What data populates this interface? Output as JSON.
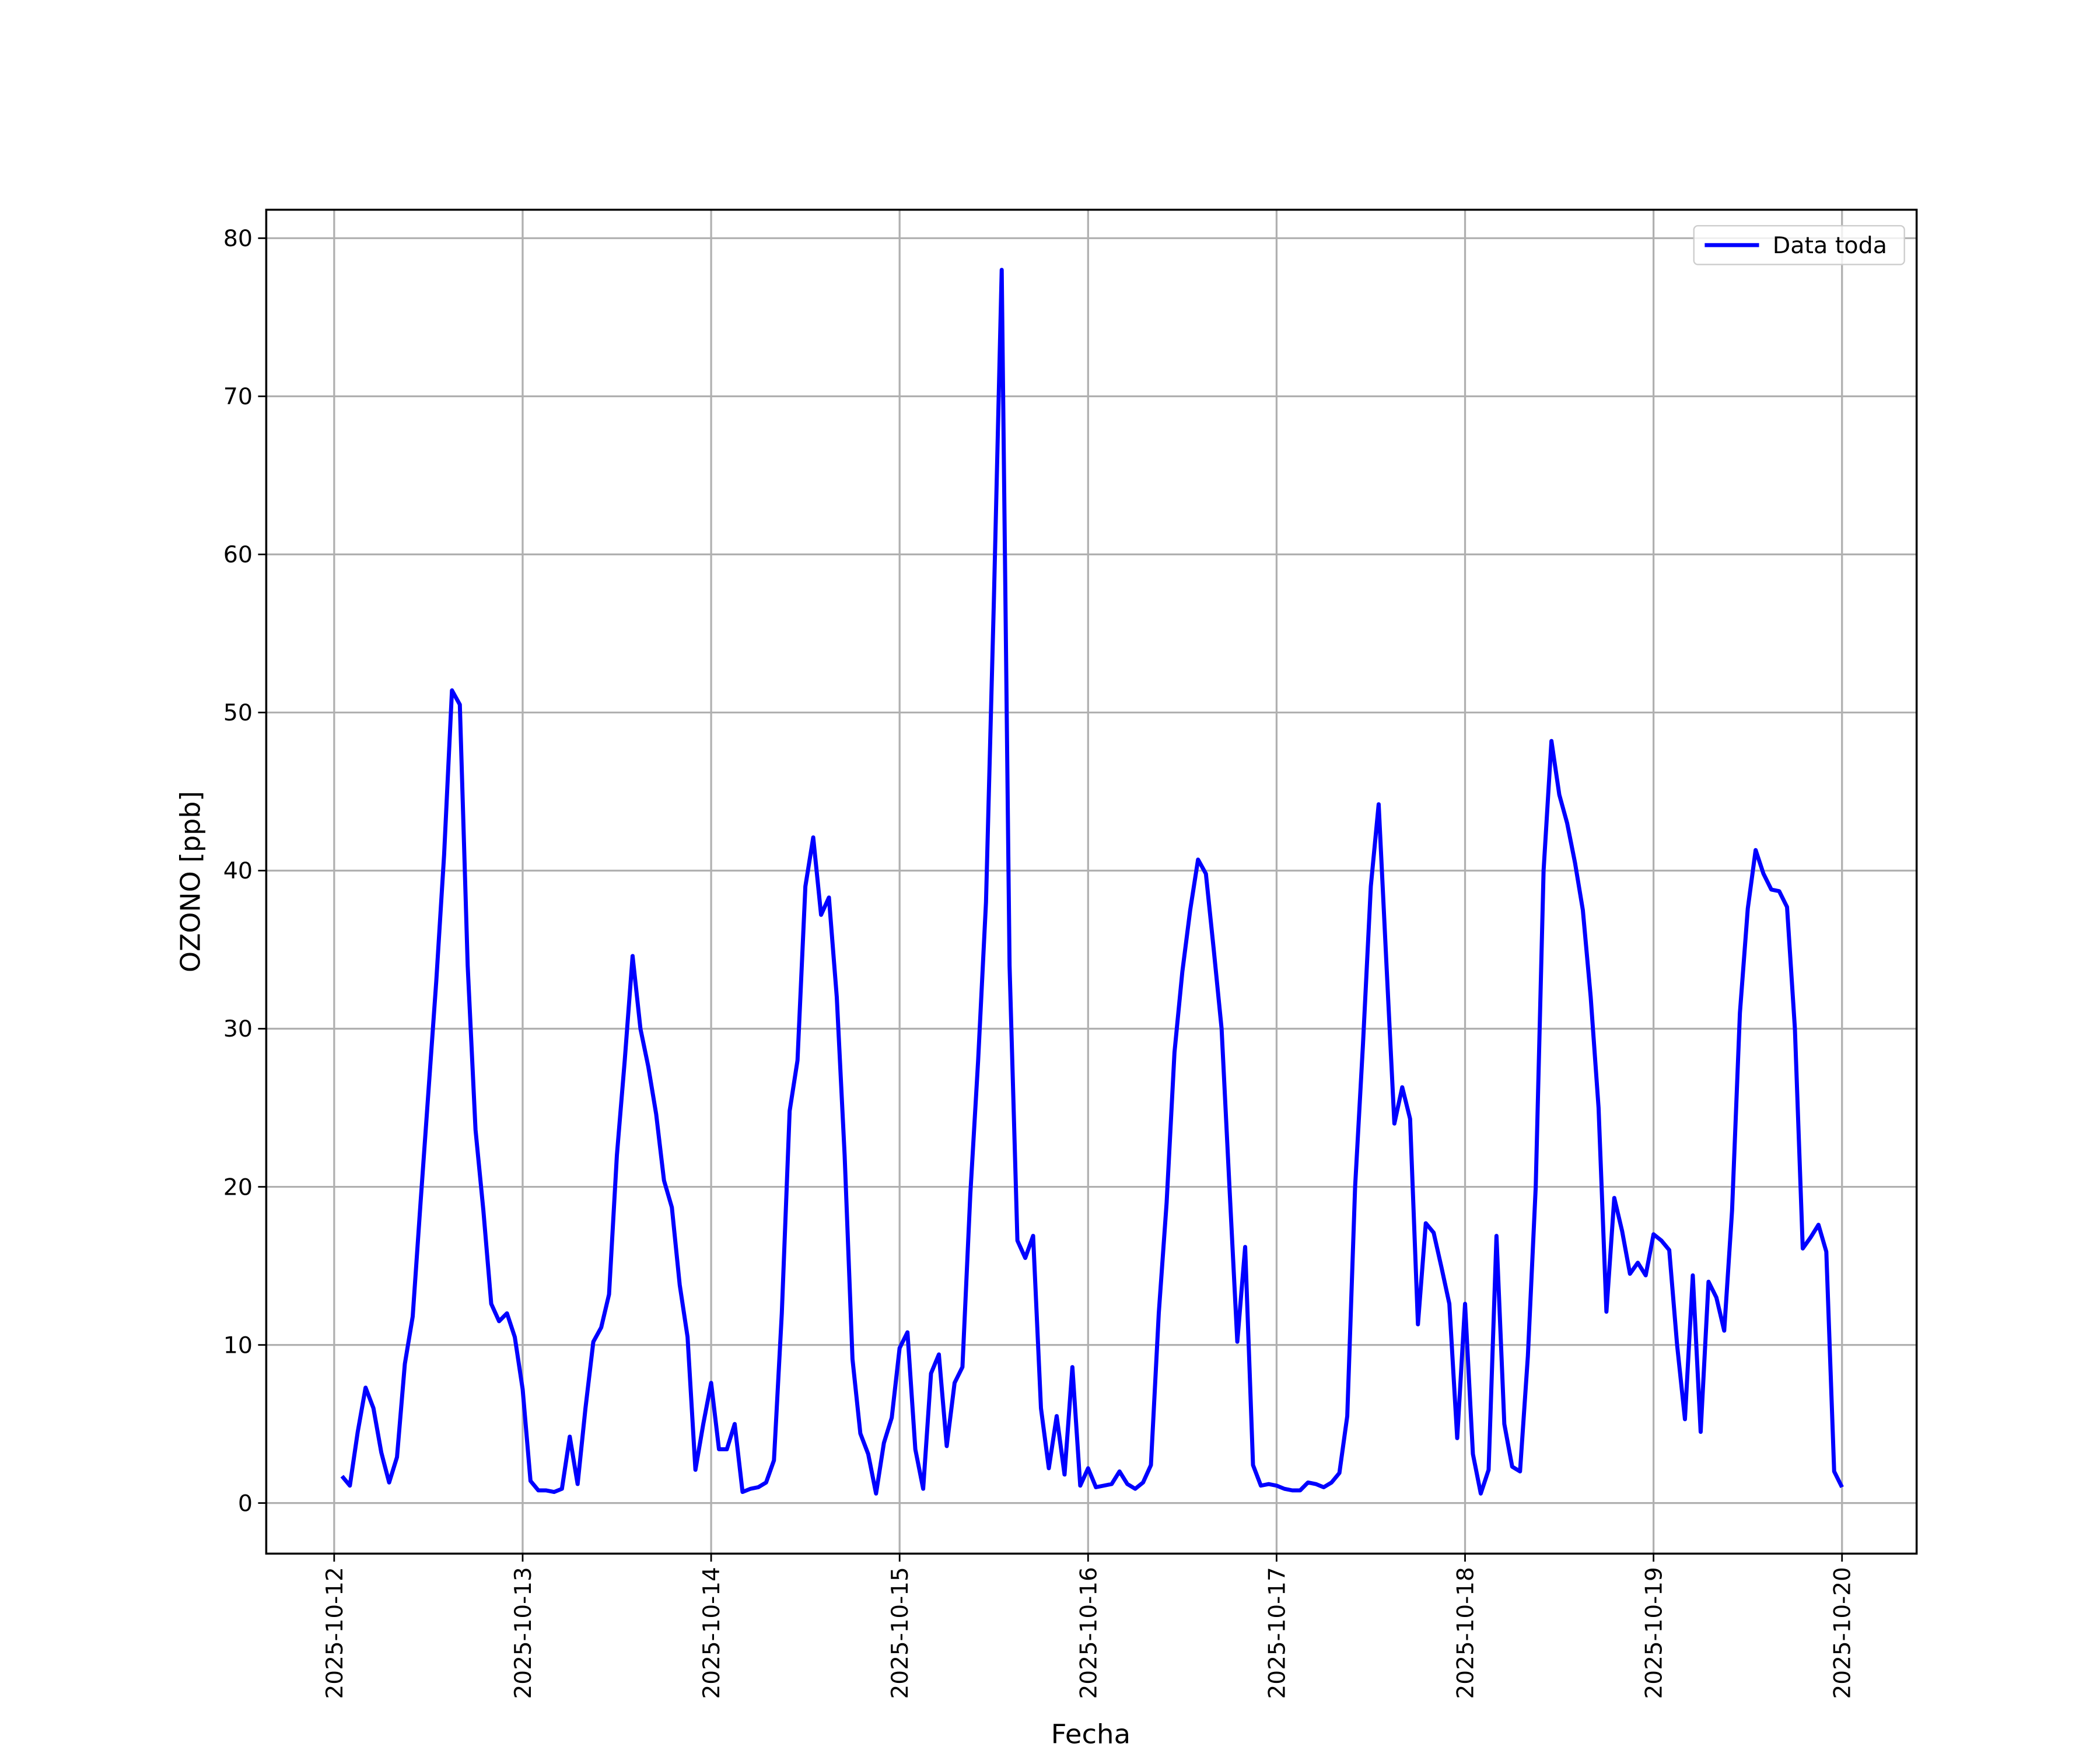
{
  "chart_data": {
    "type": "line",
    "xlabel": "Fecha",
    "ylabel": "OZONO [ppb]",
    "legend": "upper right",
    "grid": true,
    "xlim": [
      "2025-10-11T15:21",
      "2025-10-20T09:30"
    ],
    "xticks": [
      "2025-10-12",
      "2025-10-13",
      "2025-10-14",
      "2025-10-15",
      "2025-10-16",
      "2025-10-17",
      "2025-10-18",
      "2025-10-19",
      "2025-10-20"
    ],
    "ylim": [
      -3.2,
      81.8
    ],
    "yticks": [
      0,
      10,
      20,
      30,
      40,
      50,
      60,
      70,
      80
    ],
    "x": [
      "2025-10-12T01:00",
      "2025-10-12T02:00",
      "2025-10-12T03:00",
      "2025-10-12T04:00",
      "2025-10-12T05:00",
      "2025-10-12T06:00",
      "2025-10-12T07:00",
      "2025-10-12T08:00",
      "2025-10-12T09:00",
      "2025-10-12T10:00",
      "2025-10-12T11:00",
      "2025-10-12T12:00",
      "2025-10-12T13:00",
      "2025-10-12T14:00",
      "2025-10-12T15:00",
      "2025-10-12T16:00",
      "2025-10-12T17:00",
      "2025-10-12T18:00",
      "2025-10-12T19:00",
      "2025-10-12T20:00",
      "2025-10-12T21:00",
      "2025-10-12T22:00",
      "2025-10-12T23:00",
      "2025-10-13T00:00",
      "2025-10-13T01:00",
      "2025-10-13T02:00",
      "2025-10-13T03:00",
      "2025-10-13T04:00",
      "2025-10-13T05:00",
      "2025-10-13T06:00",
      "2025-10-13T07:00",
      "2025-10-13T08:00",
      "2025-10-13T09:00",
      "2025-10-13T10:00",
      "2025-10-13T11:00",
      "2025-10-13T12:00",
      "2025-10-13T13:00",
      "2025-10-13T14:00",
      "2025-10-13T15:00",
      "2025-10-13T16:00",
      "2025-10-13T17:00",
      "2025-10-13T18:00",
      "2025-10-13T19:00",
      "2025-10-13T20:00",
      "2025-10-13T21:00",
      "2025-10-13T22:00",
      "2025-10-13T23:00",
      "2025-10-14T00:00",
      "2025-10-14T01:00",
      "2025-10-14T02:00",
      "2025-10-14T03:00",
      "2025-10-14T04:00",
      "2025-10-14T05:00",
      "2025-10-14T06:00",
      "2025-10-14T07:00",
      "2025-10-14T08:00",
      "2025-10-14T09:00",
      "2025-10-14T10:00",
      "2025-10-14T11:00",
      "2025-10-14T12:00",
      "2025-10-14T13:00",
      "2025-10-14T14:00",
      "2025-10-14T15:00",
      "2025-10-14T16:00",
      "2025-10-14T17:00",
      "2025-10-14T18:00",
      "2025-10-14T19:00",
      "2025-10-14T20:00",
      "2025-10-14T21:00",
      "2025-10-14T22:00",
      "2025-10-14T23:00",
      "2025-10-15T00:00",
      "2025-10-15T01:00",
      "2025-10-15T02:00",
      "2025-10-15T03:00",
      "2025-10-15T04:00",
      "2025-10-15T05:00",
      "2025-10-15T06:00",
      "2025-10-15T07:00",
      "2025-10-15T08:00",
      "2025-10-15T09:00",
      "2025-10-15T10:00",
      "2025-10-15T11:00",
      "2025-10-15T12:00",
      "2025-10-15T13:00",
      "2025-10-15T14:00",
      "2025-10-15T15:00",
      "2025-10-15T16:00",
      "2025-10-15T17:00",
      "2025-10-15T18:00",
      "2025-10-15T19:00",
      "2025-10-15T20:00",
      "2025-10-15T21:00",
      "2025-10-15T22:00",
      "2025-10-15T23:00",
      "2025-10-16T00:00",
      "2025-10-16T01:00",
      "2025-10-16T02:00",
      "2025-10-16T03:00",
      "2025-10-16T04:00",
      "2025-10-16T05:00",
      "2025-10-16T06:00",
      "2025-10-16T07:00",
      "2025-10-16T08:00",
      "2025-10-16T09:00",
      "2025-10-16T10:00",
      "2025-10-16T11:00",
      "2025-10-16T12:00",
      "2025-10-16T13:00",
      "2025-10-16T14:00",
      "2025-10-16T15:00",
      "2025-10-16T16:00",
      "2025-10-16T17:00",
      "2025-10-16T18:00",
      "2025-10-16T19:00",
      "2025-10-16T20:00",
      "2025-10-16T21:00",
      "2025-10-16T22:00",
      "2025-10-16T23:00",
      "2025-10-17T00:00",
      "2025-10-17T01:00",
      "2025-10-17T02:00",
      "2025-10-17T03:00",
      "2025-10-17T04:00",
      "2025-10-17T05:00",
      "2025-10-17T06:00",
      "2025-10-17T07:00",
      "2025-10-17T08:00",
      "2025-10-17T09:00",
      "2025-10-17T10:00",
      "2025-10-17T11:00",
      "2025-10-17T12:00",
      "2025-10-17T13:00",
      "2025-10-17T14:00",
      "2025-10-17T15:00",
      "2025-10-17T16:00",
      "2025-10-17T17:00",
      "2025-10-17T18:00",
      "2025-10-17T19:00",
      "2025-10-17T20:00",
      "2025-10-17T21:00",
      "2025-10-17T22:00",
      "2025-10-17T23:00",
      "2025-10-18T00:00",
      "2025-10-18T01:00",
      "2025-10-18T02:00",
      "2025-10-18T03:00",
      "2025-10-18T04:00",
      "2025-10-18T05:00",
      "2025-10-18T06:00",
      "2025-10-18T07:00",
      "2025-10-18T08:00",
      "2025-10-18T09:00",
      "2025-10-18T10:00",
      "2025-10-18T11:00",
      "2025-10-18T12:00",
      "2025-10-18T13:00",
      "2025-10-18T14:00",
      "2025-10-18T15:00",
      "2025-10-18T16:00",
      "2025-10-18T17:00",
      "2025-10-18T18:00",
      "2025-10-18T19:00",
      "2025-10-18T20:00",
      "2025-10-18T21:00",
      "2025-10-18T22:00",
      "2025-10-18T23:00",
      "2025-10-19T00:00",
      "2025-10-19T01:00",
      "2025-10-19T02:00",
      "2025-10-19T03:00",
      "2025-10-19T04:00",
      "2025-10-19T05:00",
      "2025-10-19T06:00",
      "2025-10-19T07:00",
      "2025-10-19T08:00",
      "2025-10-19T09:00",
      "2025-10-19T10:00",
      "2025-10-19T11:00",
      "2025-10-19T12:00",
      "2025-10-19T13:00",
      "2025-10-19T14:00",
      "2025-10-19T15:00",
      "2025-10-19T16:00",
      "2025-10-19T17:00",
      "2025-10-19T18:00",
      "2025-10-19T19:00",
      "2025-10-19T20:00",
      "2025-10-19T21:00",
      "2025-10-19T22:00",
      "2025-10-19T23:00",
      "2025-10-20T00:00"
    ],
    "series": [
      {
        "name": "Data toda",
        "color": "#0000ff",
        "values": [
          1.7,
          1.1,
          4.5,
          7.3,
          6,
          3.2,
          1.3,
          2.9,
          8.8,
          11.8,
          19,
          26,
          33,
          41,
          51.4,
          50.5,
          34,
          23.6,
          18.5,
          12.6,
          11.5,
          12,
          10.5,
          7.2,
          1.4,
          0.8,
          0.8,
          0.7,
          0.9,
          4.2,
          1.2,
          6,
          10.2,
          11.1,
          13.2,
          22,
          28,
          34.6,
          30,
          27.6,
          24.6,
          20.4,
          18.7,
          13.8,
          10.5,
          2.1,
          5,
          7.6,
          3.4,
          3.4,
          5,
          0.7,
          0.9,
          1,
          1.3,
          2.7,
          12,
          24.8,
          28,
          39,
          42.1,
          37.2,
          38.3,
          32,
          22,
          9.1,
          4.4,
          3.1,
          0.6,
          3.8,
          5.4,
          9.8,
          10.8,
          3.4,
          0.9,
          8.2,
          9.4,
          3.6,
          7.6,
          8.6,
          19.5,
          28,
          38,
          57,
          78,
          34,
          16.6,
          15.5,
          16.9,
          6,
          2.2,
          5.5,
          1.8,
          8.6,
          1.1,
          2.2,
          1,
          1.1,
          1.2,
          2,
          1.2,
          0.9,
          1.3,
          2.4,
          12,
          19,
          28.5,
          33.6,
          37.5,
          40.7,
          39.8,
          35,
          30,
          20,
          10.2,
          16.2,
          2.4,
          1.1,
          1.2,
          1.1,
          0.9,
          0.8,
          0.8,
          1.3,
          1.2,
          1,
          1.3,
          1.9,
          5.5,
          20,
          29,
          39,
          44.2,
          34,
          24,
          26.3,
          24.3,
          11.3,
          17.7,
          17.1,
          14.9,
          12.6,
          4.1,
          12.6,
          3.1,
          0.6,
          2.1,
          16.9,
          5,
          2.3,
          2,
          9.3,
          20,
          40,
          48.2,
          44.8,
          43,
          40.5,
          37.5,
          32,
          25,
          12.1,
          19.3,
          17.2,
          14.5,
          15.2,
          14.4,
          17,
          16.6,
          16,
          10,
          5.3,
          14.4,
          4.5,
          14,
          13,
          10.9,
          18.5,
          31,
          37.6,
          41.3,
          39.8,
          38.8,
          38.7,
          37.7,
          30,
          16.1,
          16.8,
          17.6,
          15.9,
          2,
          1
        ]
      }
    ]
  }
}
